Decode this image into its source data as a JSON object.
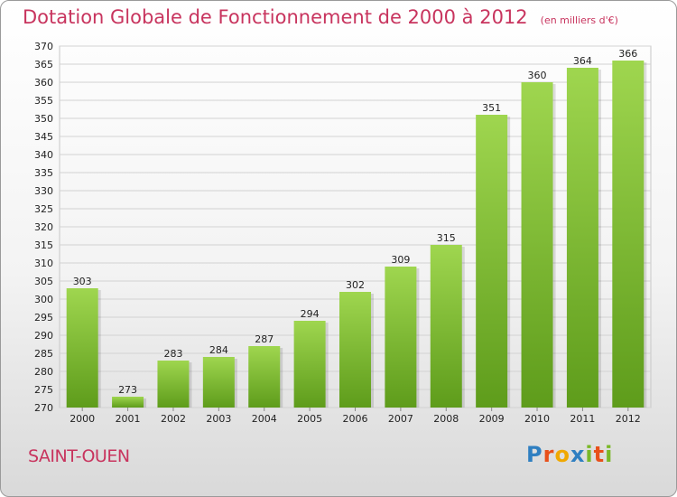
{
  "header": {
    "title": "Dotation Globale de Fonctionnement de 2000 à 2012",
    "unit": "(en milliers d'€)"
  },
  "location": "SAINT-OUEN",
  "brand": {
    "name": "Proxiti",
    "letters": [
      "P",
      "r",
      "o",
      "x",
      "i",
      "t",
      "i"
    ],
    "colors": [
      "#2f7fc1",
      "#e8501a",
      "#f0a800",
      "#2f7fc1",
      "#7ab828",
      "#e8501a",
      "#7ab828"
    ]
  },
  "colors": {
    "accent": "#c8345e",
    "bar_top": "#9fd64f",
    "bar_bottom": "#5e9c1b"
  },
  "chart_data": {
    "type": "bar",
    "categories": [
      "2000",
      "2001",
      "2002",
      "2003",
      "2004",
      "2005",
      "2006",
      "2007",
      "2008",
      "2009",
      "2010",
      "2011",
      "2012"
    ],
    "values": [
      303,
      273,
      283,
      284,
      287,
      294,
      302,
      309,
      315,
      351,
      360,
      364,
      366
    ],
    "title": "Dotation Globale de Fonctionnement de 2000 à 2012",
    "subtitle": "(en milliers d'€)",
    "xlabel": "",
    "ylabel": "",
    "ylim": [
      270,
      370
    ],
    "ytick_step": 5,
    "grid": true,
    "legend": "none"
  }
}
